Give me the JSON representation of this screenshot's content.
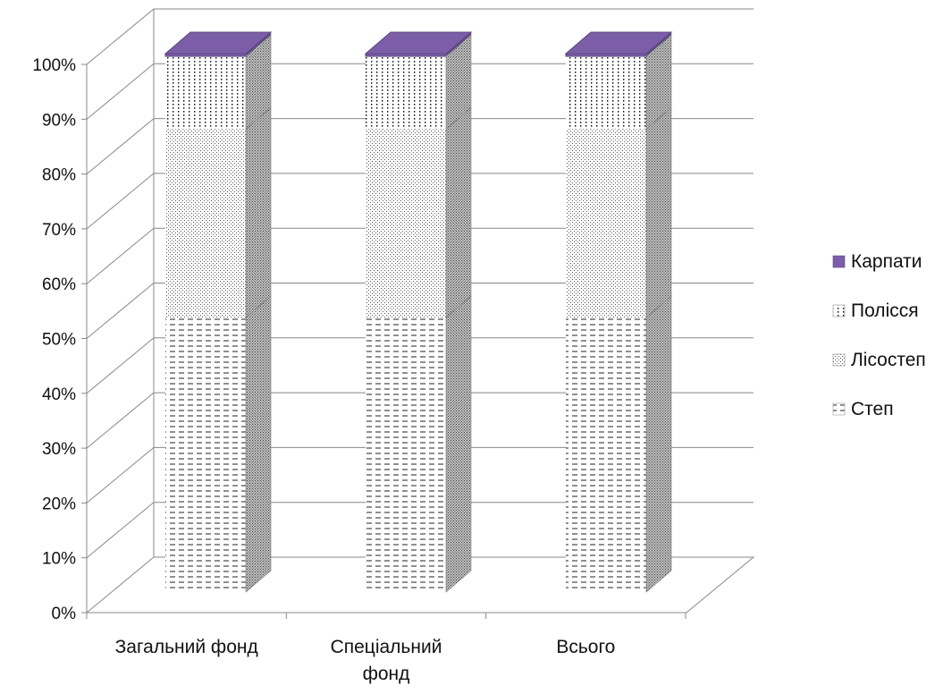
{
  "chart_data": {
    "type": "bar",
    "stacked": true,
    "three_d": true,
    "percent_stacked": true,
    "categories": [
      "Загальний фонд",
      "Спеціальний\nфонд",
      "Всього"
    ],
    "series": [
      {
        "name": "Степ",
        "pattern": "dashed-lines",
        "values": [
          51,
          51,
          51
        ]
      },
      {
        "name": "Лісостеп",
        "pattern": "fine-dots",
        "values": [
          35,
          35,
          35
        ]
      },
      {
        "name": "Полісся",
        "pattern": "dotted-columns",
        "values": [
          13.5,
          13.5,
          13.5
        ]
      },
      {
        "name": "Карпати",
        "pattern": "solid",
        "color": "#7b5ea7",
        "values": [
          0.5,
          0.5,
          0.5
        ]
      }
    ],
    "y_ticks": [
      "0%",
      "10%",
      "20%",
      "30%",
      "40%",
      "50%",
      "60%",
      "70%",
      "80%",
      "90%",
      "100%"
    ],
    "ylim": [
      0,
      100
    ],
    "grid": true,
    "legend_position": "right"
  }
}
